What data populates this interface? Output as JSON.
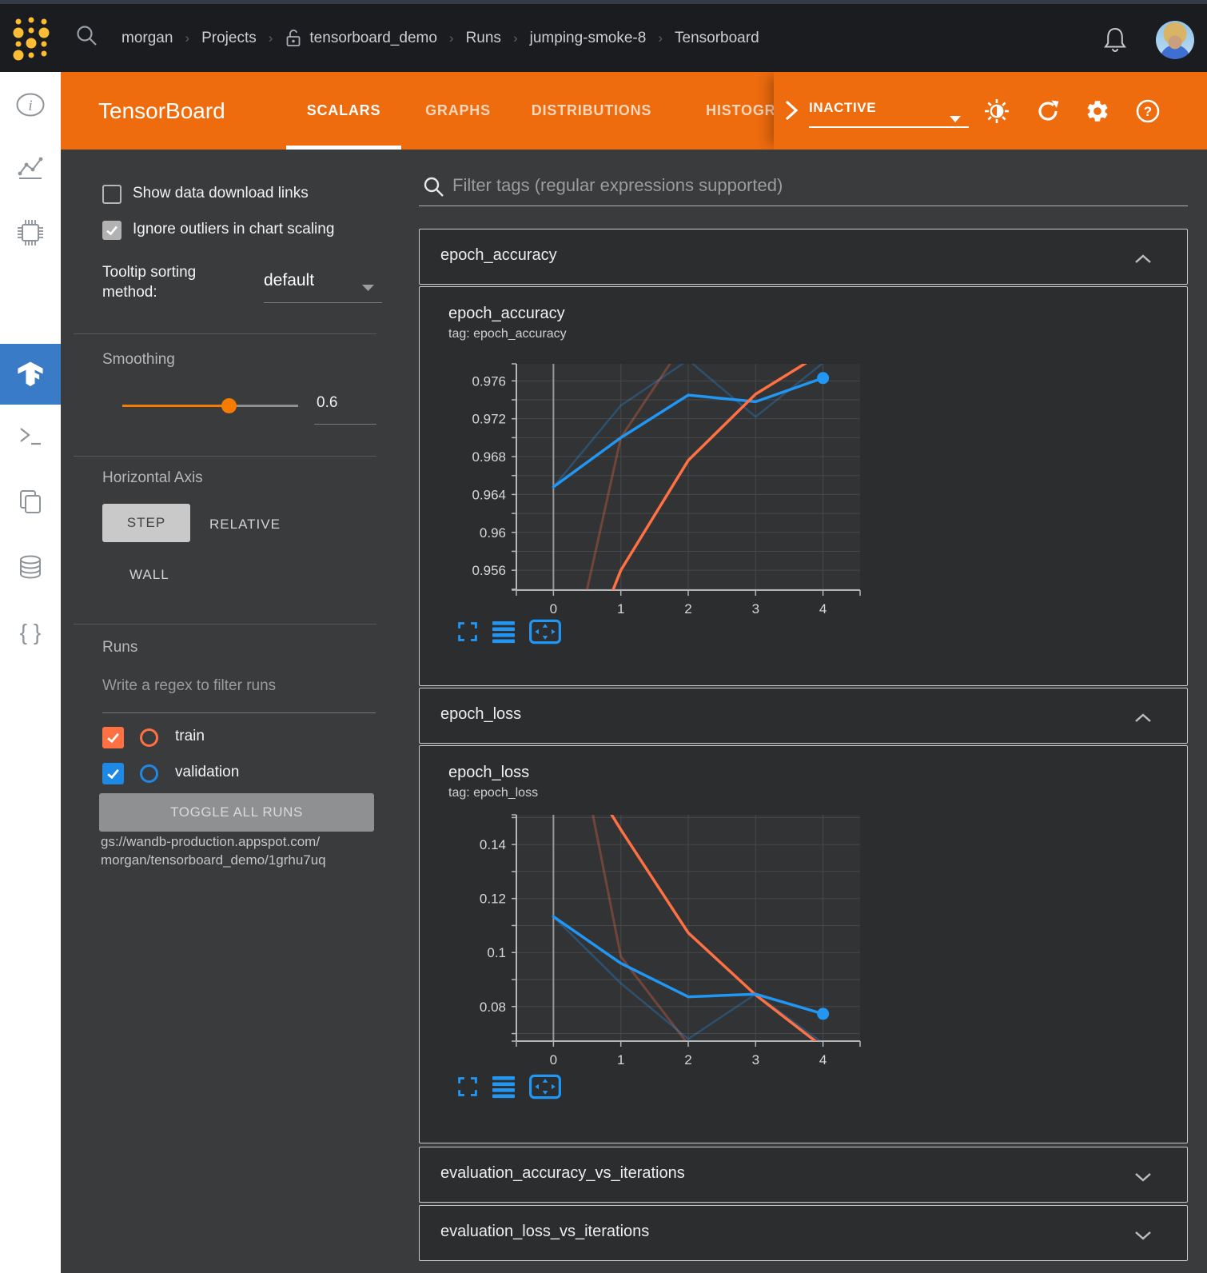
{
  "nav": {
    "breadcrumb": [
      "morgan",
      "Projects",
      "tensorboard_demo",
      "Runs",
      "jumping-smoke-8",
      "Tensorboard"
    ],
    "logo_color": "#fcbc33"
  },
  "tb_header": {
    "title": "TensorBoard",
    "tabs": [
      "SCALARS",
      "GRAPHS",
      "DISTRIBUTIONS",
      "HISTOGRAMS"
    ],
    "active_tab": "SCALARS",
    "status_select": "INACTIVE",
    "orange": "#ee6b0e"
  },
  "sidebar": {
    "active_color": "#3a7bc8",
    "items": [
      "info",
      "line-chart",
      "chip",
      "tensorflow",
      "terminal",
      "copy",
      "database",
      "braces"
    ]
  },
  "controls": {
    "show_links_label": "Show data download links",
    "ignore_outliers_label": "Ignore outliers in chart scaling",
    "tooltip_label_line1": "Tooltip sorting",
    "tooltip_label_line2": "method:",
    "tooltip_value": "default",
    "smoothing_label": "Smoothing",
    "smoothing_value": "0.6",
    "slider_color": "#f57c00",
    "axis_label": "Horizontal Axis",
    "axis_step": "STEP",
    "axis_relative": "RELATIVE",
    "axis_wall": "WALL",
    "runs_label": "Runs",
    "regex_placeholder": "Write a regex to filter runs",
    "run_train": "train",
    "run_validation": "validation",
    "train_color": "#ff7043",
    "validation_color": "#1e88e5",
    "toggle_all": "TOGGLE ALL RUNS",
    "gs_line1": "gs://wandb-production.appspot.com/",
    "gs_line2": "morgan/tensorboard_demo/1grhu7uq"
  },
  "main": {
    "filter_placeholder": "Filter tags (regular expressions supported)",
    "chart_icon_color": "#2196f3",
    "sections": [
      {
        "title": "epoch_accuracy",
        "expanded": true
      },
      {
        "title": "epoch_loss",
        "expanded": true
      },
      {
        "title": "evaluation_accuracy_vs_iterations",
        "expanded": false
      },
      {
        "title": "evaluation_loss_vs_iterations",
        "expanded": false
      }
    ]
  },
  "chart_data": [
    {
      "type": "line",
      "title": "epoch_accuracy",
      "subtitle": "tag: epoch_accuracy",
      "xlabel": "step",
      "ylabel": "epoch_accuracy",
      "xlim": [
        -0.55,
        4.55
      ],
      "ylim": [
        0.9539,
        0.9778
      ],
      "xticks": [
        0,
        1,
        2,
        3,
        4
      ],
      "yticks": [
        {
          "v": 0.976,
          "label": "0.976"
        },
        {
          "v": 0.972,
          "label": "0.972"
        },
        {
          "v": 0.968,
          "label": "0.968"
        },
        {
          "v": 0.964,
          "label": "0.964"
        },
        {
          "v": 0.96,
          "label": "0.96"
        },
        {
          "v": 0.956,
          "label": "0.956"
        }
      ],
      "y_minor_start": 0.954,
      "y_minor_step": 0.002,
      "grid": true,
      "legend": "none",
      "series": [
        {
          "name": "validation (unsmoothed)",
          "color": "#2196f3",
          "opacity": 0.3,
          "width": 2.5,
          "points": [
            [
              0,
              0.9648
            ],
            [
              1,
              0.9734
            ],
            [
              2,
              0.9782
            ],
            [
              3,
              0.9722
            ],
            [
              4,
              0.9779
            ]
          ]
        },
        {
          "name": "train (unsmoothed)",
          "color": "#ff7043",
          "opacity": 0.3,
          "width": 3,
          "points": [
            [
              0,
              0.938
            ],
            [
              1,
              0.97
            ],
            [
              2,
              0.9807
            ]
          ]
        },
        {
          "name": "validation (smoothed 0.6)",
          "color": "#2196f3",
          "opacity": 1,
          "width": 3.5,
          "end_dot": true,
          "points": [
            [
              0,
              0.9648
            ],
            [
              1,
              0.97
            ],
            [
              2,
              0.9745
            ],
            [
              3,
              0.9738
            ],
            [
              4,
              0.9763
            ]
          ]
        },
        {
          "name": "train (smoothed 0.6)",
          "color": "#ff7043",
          "opacity": 1,
          "width": 3.5,
          "points": [
            [
              0,
              0.938
            ],
            [
              1,
              0.956
            ],
            [
              2,
              0.9676
            ],
            [
              3,
              0.9746
            ],
            [
              4,
              0.979
            ]
          ]
        }
      ]
    },
    {
      "type": "line",
      "title": "epoch_loss",
      "subtitle": "tag: epoch_loss",
      "xlabel": "step",
      "ylabel": "epoch_loss",
      "xlim": [
        -0.55,
        4.55
      ],
      "ylim": [
        0.0672,
        0.151
      ],
      "xticks": [
        0,
        1,
        2,
        3,
        4
      ],
      "yticks": [
        {
          "v": 0.14,
          "label": "0.14"
        },
        {
          "v": 0.12,
          "label": "0.12"
        },
        {
          "v": 0.1,
          "label": "0.1"
        },
        {
          "v": 0.08,
          "label": "0.08"
        }
      ],
      "y_minor_start": 0.07,
      "y_minor_step": 0.01,
      "grid": true,
      "legend": "none",
      "series": [
        {
          "name": "train (unsmoothed)",
          "color": "#ff7043",
          "opacity": 0.3,
          "width": 3,
          "points": [
            [
              0,
              0.225
            ],
            [
              1,
              0.0985
            ],
            [
              2,
              0.066
            ]
          ]
        },
        {
          "name": "validation (unsmoothed)",
          "color": "#2196f3",
          "opacity": 0.3,
          "width": 2.5,
          "points": [
            [
              0,
              0.1133
            ],
            [
              1,
              0.0886
            ],
            [
              2,
              0.068
            ],
            [
              3,
              0.0846
            ],
            [
              4,
              0.0664
            ]
          ]
        },
        {
          "name": "train (smoothed 0.6)",
          "color": "#ff7043",
          "opacity": 1,
          "width": 3.5,
          "points": [
            [
              0,
              0.186
            ],
            [
              1,
              0.1455
            ],
            [
              2,
              0.1073
            ],
            [
              3,
              0.0843
            ],
            [
              4,
              0.065
            ]
          ]
        },
        {
          "name": "validation (smoothed 0.6)",
          "color": "#2196f3",
          "opacity": 1,
          "width": 3.5,
          "end_dot": true,
          "points": [
            [
              0,
              0.1133
            ],
            [
              1,
              0.096
            ],
            [
              2,
              0.0836
            ],
            [
              3,
              0.0846
            ],
            [
              4,
              0.0773
            ]
          ]
        }
      ]
    }
  ]
}
